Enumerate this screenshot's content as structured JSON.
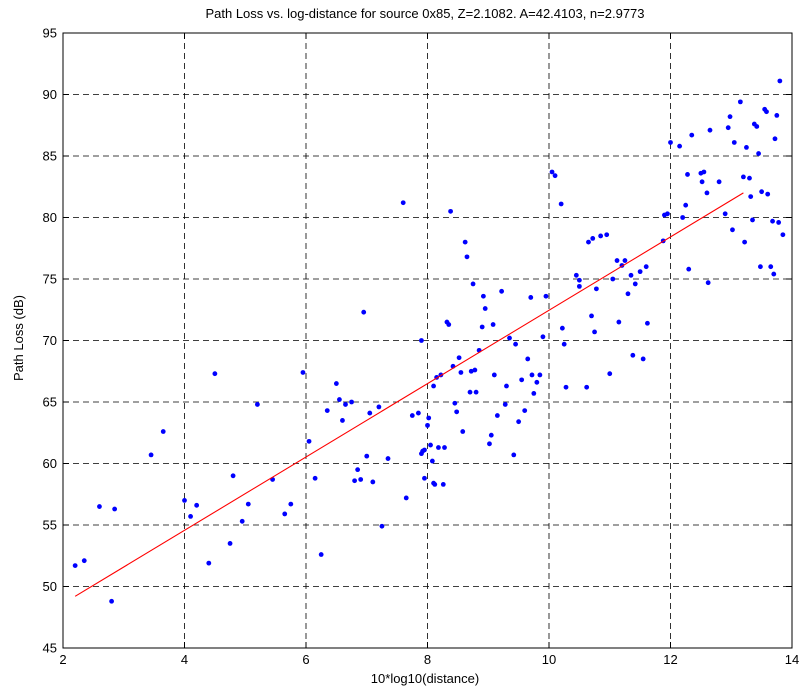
{
  "chart_data": {
    "type": "scatter",
    "title": "Path Loss vs. log-distance for source 0x85, Z=2.1082. A=42.4103, n=2.9773",
    "xlabel": "10*log10(distance)",
    "ylabel": "Path Loss (dB)",
    "xlim": [
      2,
      14
    ],
    "ylim": [
      45,
      95
    ],
    "xticks": [
      2,
      4,
      6,
      8,
      10,
      12,
      14
    ],
    "yticks": [
      45,
      50,
      55,
      60,
      65,
      70,
      75,
      80,
      85,
      90,
      95
    ],
    "grid": "dashed",
    "colors": {
      "points": "#0000ff",
      "fit_line": "#ff0000",
      "grid": "#000000"
    },
    "fit_line": {
      "x": [
        2.2,
        13.2
      ],
      "y": [
        49.2,
        82.0
      ]
    },
    "points": [
      [
        2.2,
        51.7
      ],
      [
        2.35,
        52.1
      ],
      [
        2.6,
        56.5
      ],
      [
        2.8,
        48.8
      ],
      [
        2.85,
        56.3
      ],
      [
        3.45,
        60.7
      ],
      [
        3.65,
        62.6
      ],
      [
        4.0,
        57.0
      ],
      [
        4.1,
        55.7
      ],
      [
        4.2,
        56.6
      ],
      [
        4.4,
        51.9
      ],
      [
        4.5,
        67.3
      ],
      [
        4.75,
        53.5
      ],
      [
        4.8,
        59.0
      ],
      [
        4.95,
        55.3
      ],
      [
        5.05,
        56.7
      ],
      [
        5.2,
        64.8
      ],
      [
        5.45,
        58.7
      ],
      [
        5.65,
        55.9
      ],
      [
        5.75,
        56.7
      ],
      [
        5.95,
        67.4
      ],
      [
        6.05,
        61.8
      ],
      [
        6.15,
        58.8
      ],
      [
        6.25,
        52.6
      ],
      [
        6.35,
        64.3
      ],
      [
        6.5,
        66.5
      ],
      [
        6.55,
        65.2
      ],
      [
        6.6,
        63.5
      ],
      [
        6.65,
        64.8
      ],
      [
        6.75,
        65.0
      ],
      [
        6.8,
        58.6
      ],
      [
        6.85,
        59.5
      ],
      [
        6.9,
        58.7
      ],
      [
        6.95,
        72.3
      ],
      [
        7.0,
        60.6
      ],
      [
        7.05,
        64.1
      ],
      [
        7.1,
        58.5
      ],
      [
        7.2,
        64.6
      ],
      [
        7.25,
        54.9
      ],
      [
        7.35,
        60.4
      ],
      [
        7.6,
        81.2
      ],
      [
        7.65,
        57.2
      ],
      [
        7.75,
        63.9
      ],
      [
        7.85,
        64.1
      ],
      [
        7.9,
        60.8
      ],
      [
        7.9,
        70.0
      ],
      [
        7.92,
        61.0
      ],
      [
        7.95,
        58.8
      ],
      [
        8.0,
        63.1
      ],
      [
        8.02,
        63.7
      ],
      [
        8.05,
        61.5
      ],
      [
        8.08,
        60.2
      ],
      [
        8.1,
        66.3
      ],
      [
        8.12,
        58.3
      ],
      [
        8.15,
        67.0
      ],
      [
        8.18,
        61.3
      ],
      [
        8.22,
        67.2
      ],
      [
        8.26,
        58.3
      ],
      [
        8.28,
        61.3
      ],
      [
        8.32,
        71.5
      ],
      [
        8.35,
        71.3
      ],
      [
        8.38,
        80.5
      ],
      [
        8.42,
        67.9
      ],
      [
        8.45,
        64.9
      ],
      [
        8.48,
        64.2
      ],
      [
        8.52,
        68.6
      ],
      [
        8.58,
        62.6
      ],
      [
        8.62,
        78.0
      ],
      [
        8.65,
        76.8
      ],
      [
        8.7,
        65.8
      ],
      [
        8.72,
        67.5
      ],
      [
        8.75,
        74.6
      ],
      [
        8.78,
        67.6
      ],
      [
        8.8,
        65.8
      ],
      [
        8.85,
        69.2
      ],
      [
        8.9,
        71.1
      ],
      [
        8.92,
        73.6
      ],
      [
        8.95,
        72.6
      ],
      [
        9.02,
        61.6
      ],
      [
        9.05,
        62.3
      ],
      [
        9.08,
        71.3
      ],
      [
        9.1,
        67.2
      ],
      [
        9.15,
        63.9
      ],
      [
        9.22,
        74.0
      ],
      [
        9.28,
        64.8
      ],
      [
        9.3,
        66.3
      ],
      [
        9.35,
        70.2
      ],
      [
        9.42,
        60.7
      ],
      [
        9.45,
        69.7
      ],
      [
        9.5,
        63.4
      ],
      [
        9.55,
        66.8
      ],
      [
        9.6,
        64.3
      ],
      [
        9.65,
        68.5
      ],
      [
        9.7,
        73.5
      ],
      [
        9.72,
        67.2
      ],
      [
        9.75,
        65.7
      ],
      [
        9.8,
        66.6
      ],
      [
        9.85,
        67.2
      ],
      [
        9.9,
        70.3
      ],
      [
        9.95,
        73.6
      ],
      [
        10.05,
        83.7
      ],
      [
        10.1,
        83.4
      ],
      [
        10.2,
        81.1
      ],
      [
        10.22,
        71.0
      ],
      [
        10.25,
        69.7
      ],
      [
        10.28,
        66.2
      ],
      [
        10.45,
        75.3
      ],
      [
        10.5,
        74.4
      ],
      [
        10.5,
        74.9
      ],
      [
        10.62,
        66.2
      ],
      [
        10.65,
        78.0
      ],
      [
        10.7,
        72.0
      ],
      [
        10.72,
        78.3
      ],
      [
        10.75,
        70.7
      ],
      [
        10.78,
        74.2
      ],
      [
        10.85,
        78.5
      ],
      [
        10.95,
        78.6
      ],
      [
        11.0,
        67.3
      ],
      [
        11.05,
        75.0
      ],
      [
        11.12,
        76.5
      ],
      [
        11.15,
        71.5
      ],
      [
        11.2,
        76.1
      ],
      [
        11.25,
        76.5
      ],
      [
        11.3,
        73.8
      ],
      [
        11.35,
        75.3
      ],
      [
        11.38,
        68.8
      ],
      [
        11.42,
        74.6
      ],
      [
        11.5,
        75.6
      ],
      [
        11.55,
        68.5
      ],
      [
        11.6,
        76.0
      ],
      [
        11.62,
        71.4
      ],
      [
        11.88,
        78.1
      ],
      [
        11.9,
        80.2
      ],
      [
        11.95,
        80.3
      ],
      [
        12.0,
        86.1
      ],
      [
        12.15,
        85.8
      ],
      [
        12.2,
        80.0
      ],
      [
        12.25,
        81.0
      ],
      [
        12.28,
        83.5
      ],
      [
        12.3,
        75.8
      ],
      [
        12.35,
        86.7
      ],
      [
        12.5,
        83.6
      ],
      [
        12.52,
        82.9
      ],
      [
        12.55,
        83.7
      ],
      [
        12.6,
        82.0
      ],
      [
        12.62,
        74.7
      ],
      [
        12.65,
        87.1
      ],
      [
        12.8,
        82.9
      ],
      [
        12.9,
        80.3
      ],
      [
        12.95,
        87.3
      ],
      [
        12.98,
        88.2
      ],
      [
        13.02,
        79.0
      ],
      [
        13.05,
        86.1
      ],
      [
        13.15,
        89.4
      ],
      [
        13.2,
        83.3
      ],
      [
        13.22,
        78.0
      ],
      [
        13.25,
        85.7
      ],
      [
        13.3,
        83.2
      ],
      [
        13.32,
        81.7
      ],
      [
        13.38,
        87.6
      ],
      [
        13.42,
        87.4
      ],
      [
        13.45,
        85.2
      ],
      [
        13.5,
        82.1
      ],
      [
        13.55,
        88.8
      ],
      [
        13.58,
        88.6
      ],
      [
        13.6,
        81.9
      ],
      [
        13.65,
        76.0
      ],
      [
        13.68,
        79.7
      ],
      [
        13.7,
        75.4
      ],
      [
        13.72,
        86.4
      ],
      [
        13.75,
        88.3
      ],
      [
        13.78,
        79.6
      ],
      [
        13.8,
        91.1
      ],
      [
        13.85,
        78.6
      ],
      [
        13.35,
        79.8
      ],
      [
        13.48,
        76.0
      ],
      [
        8.55,
        67.4
      ],
      [
        8.1,
        58.4
      ],
      [
        7.95,
        61.1
      ]
    ]
  }
}
